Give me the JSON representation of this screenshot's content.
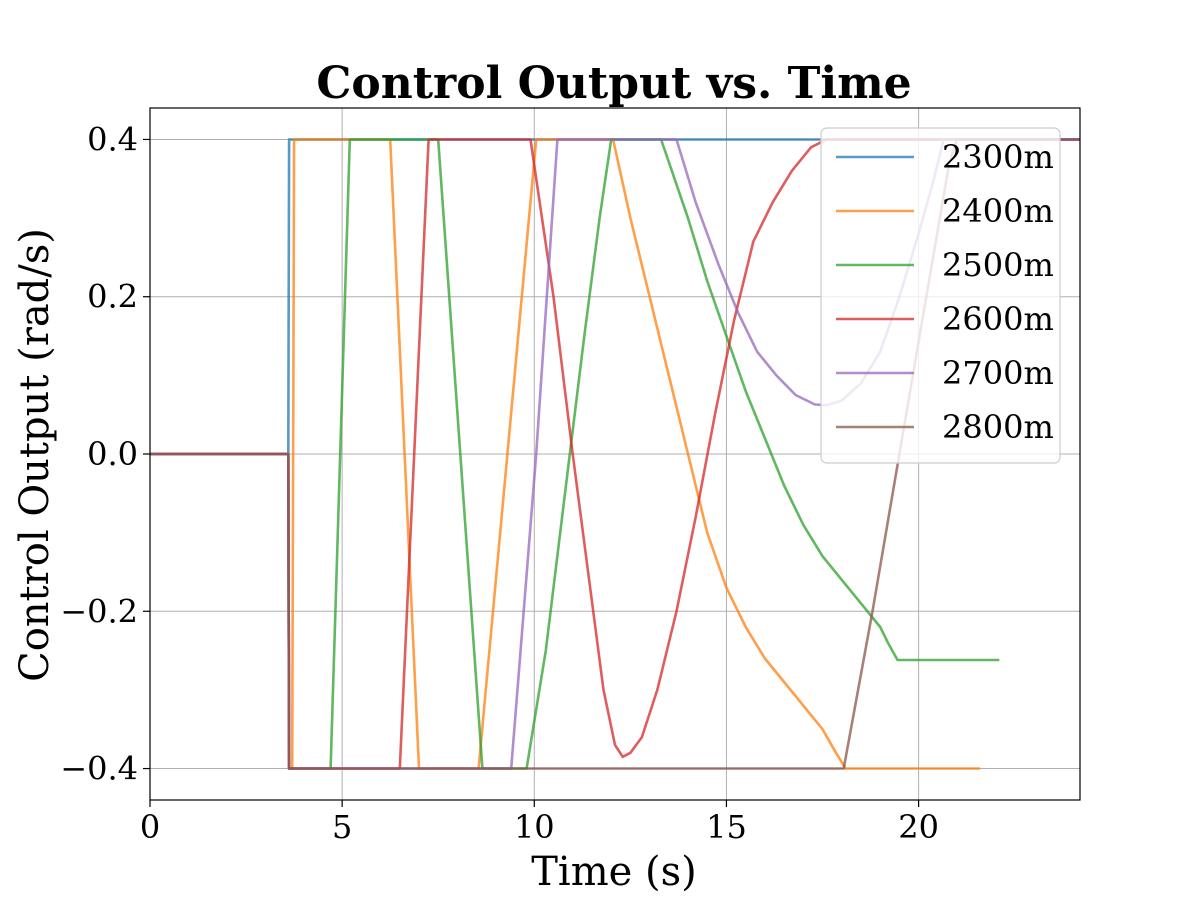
{
  "chart_data": {
    "type": "line",
    "title": "Control Output vs. Time",
    "xlabel": "Time (s)",
    "ylabel": "Control Output (rad/s)",
    "xlim": [
      0,
      24.2
    ],
    "ylim": [
      -0.44,
      0.44
    ],
    "xticks": [
      0,
      5,
      10,
      15,
      20
    ],
    "xtick_labels": [
      "0",
      "5",
      "10",
      "15",
      "20"
    ],
    "yticks": [
      -0.4,
      -0.2,
      0.0,
      0.2,
      0.4
    ],
    "ytick_labels": [
      "−0.4",
      "−0.2",
      "0.0",
      "0.2",
      "0.4"
    ],
    "grid": true,
    "legend_position": "upper right",
    "series": [
      {
        "name": "2300m",
        "color": "#1f77b4",
        "points": [
          [
            0,
            0
          ],
          [
            3.6,
            0
          ],
          [
            3.62,
            0.4
          ],
          [
            24.2,
            0.4
          ]
        ]
      },
      {
        "name": "2400m",
        "color": "#ff7f0e",
        "points": [
          [
            0,
            0
          ],
          [
            3.6,
            0
          ],
          [
            3.62,
            -0.4
          ],
          [
            3.7,
            -0.4
          ],
          [
            3.75,
            0.4
          ],
          [
            6.25,
            0.4
          ],
          [
            7.0,
            -0.4
          ],
          [
            8.55,
            -0.4
          ],
          [
            10.05,
            0.4
          ],
          [
            12.05,
            0.4
          ],
          [
            12.5,
            0.3
          ],
          [
            13.0,
            0.2
          ],
          [
            13.5,
            0.1
          ],
          [
            14.0,
            0.0
          ],
          [
            14.5,
            -0.1
          ],
          [
            15.0,
            -0.17
          ],
          [
            15.5,
            -0.22
          ],
          [
            16.0,
            -0.26
          ],
          [
            16.5,
            -0.29
          ],
          [
            17.0,
            -0.32
          ],
          [
            17.5,
            -0.35
          ],
          [
            17.85,
            -0.38
          ],
          [
            18.1,
            -0.4
          ],
          [
            21.6,
            -0.4
          ]
        ]
      },
      {
        "name": "2500m",
        "color": "#2ca02c",
        "points": [
          [
            0,
            0
          ],
          [
            3.6,
            0
          ],
          [
            3.62,
            -0.4
          ],
          [
            4.7,
            -0.4
          ],
          [
            5.2,
            0.4
          ],
          [
            7.5,
            0.4
          ],
          [
            8.65,
            -0.4
          ],
          [
            9.8,
            -0.4
          ],
          [
            10.3,
            -0.25
          ],
          [
            10.8,
            -0.05
          ],
          [
            11.3,
            0.15
          ],
          [
            11.7,
            0.3
          ],
          [
            12.0,
            0.4
          ],
          [
            13.3,
            0.4
          ],
          [
            14.0,
            0.3
          ],
          [
            14.5,
            0.22
          ],
          [
            15.0,
            0.15
          ],
          [
            15.5,
            0.08
          ],
          [
            16.0,
            0.02
          ],
          [
            16.5,
            -0.04
          ],
          [
            17.0,
            -0.09
          ],
          [
            17.5,
            -0.13
          ],
          [
            18.0,
            -0.16
          ],
          [
            18.5,
            -0.19
          ],
          [
            19.0,
            -0.22
          ],
          [
            19.2,
            -0.24
          ],
          [
            19.45,
            -0.262
          ],
          [
            22.1,
            -0.262
          ]
        ]
      },
      {
        "name": "2600m",
        "color": "#d62728",
        "points": [
          [
            0,
            0
          ],
          [
            3.6,
            0
          ],
          [
            3.62,
            -0.4
          ],
          [
            6.5,
            -0.4
          ],
          [
            7.25,
            0.4
          ],
          [
            9.9,
            0.4
          ],
          [
            10.5,
            0.2
          ],
          [
            11.0,
            0.0
          ],
          [
            11.4,
            -0.15
          ],
          [
            11.8,
            -0.3
          ],
          [
            12.1,
            -0.37
          ],
          [
            12.3,
            -0.385
          ],
          [
            12.5,
            -0.38
          ],
          [
            12.8,
            -0.36
          ],
          [
            13.2,
            -0.3
          ],
          [
            13.7,
            -0.2
          ],
          [
            14.2,
            -0.08
          ],
          [
            14.7,
            0.05
          ],
          [
            15.2,
            0.17
          ],
          [
            15.7,
            0.27
          ],
          [
            16.2,
            0.32
          ],
          [
            16.7,
            0.36
          ],
          [
            17.2,
            0.39
          ],
          [
            17.6,
            0.4
          ],
          [
            24.2,
            0.4
          ]
        ]
      },
      {
        "name": "2700m",
        "color": "#9467bd",
        "points": [
          [
            0,
            0
          ],
          [
            3.6,
            0
          ],
          [
            3.62,
            -0.4
          ],
          [
            9.4,
            -0.4
          ],
          [
            10.05,
            0.0
          ],
          [
            10.6,
            0.4
          ],
          [
            13.7,
            0.4
          ],
          [
            14.2,
            0.32
          ],
          [
            14.8,
            0.24
          ],
          [
            15.3,
            0.18
          ],
          [
            15.8,
            0.13
          ],
          [
            16.3,
            0.1
          ],
          [
            16.8,
            0.075
          ],
          [
            17.3,
            0.063
          ],
          [
            17.6,
            0.062
          ],
          [
            18.0,
            0.068
          ],
          [
            18.5,
            0.09
          ],
          [
            19.0,
            0.13
          ],
          [
            19.5,
            0.2
          ],
          [
            20.0,
            0.28
          ],
          [
            20.4,
            0.35
          ],
          [
            20.65,
            0.4
          ],
          [
            24.2,
            0.4
          ]
        ]
      },
      {
        "name": "2800m",
        "color": "#8c564b",
        "points": [
          [
            0,
            0
          ],
          [
            3.6,
            0
          ],
          [
            3.62,
            -0.4
          ],
          [
            18.05,
            -0.4
          ],
          [
            18.8,
            -0.2
          ],
          [
            19.5,
            0.0
          ],
          [
            20.2,
            0.2
          ],
          [
            20.8,
            0.37
          ],
          [
            21.0,
            0.4
          ],
          [
            24.2,
            0.4
          ]
        ]
      }
    ]
  }
}
